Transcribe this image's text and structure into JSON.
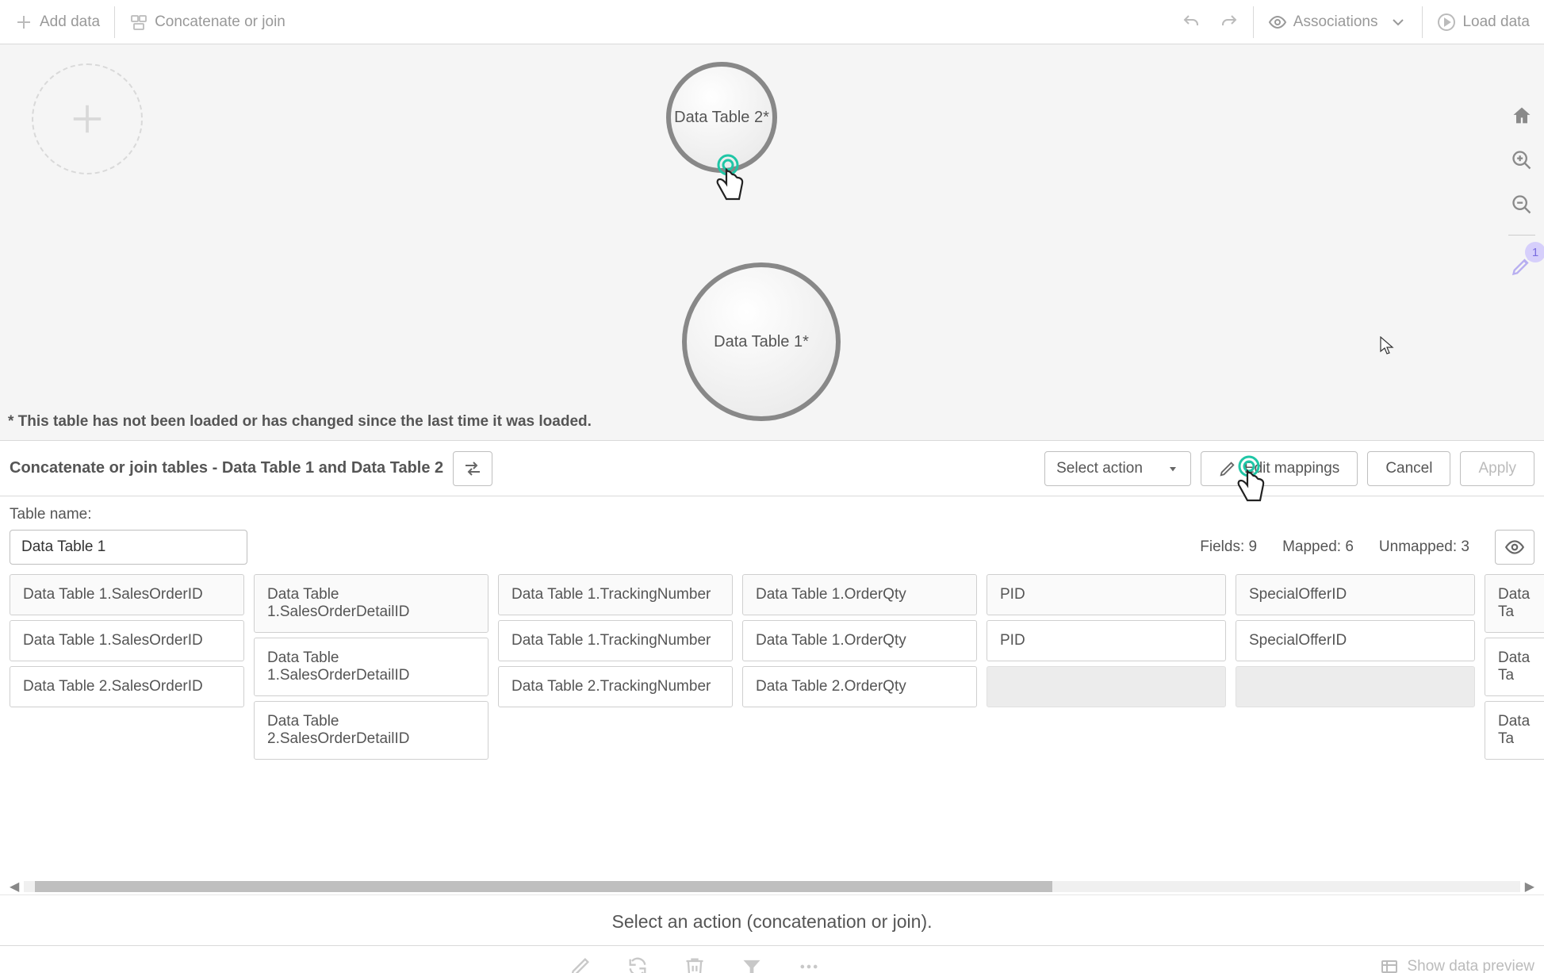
{
  "topbar": {
    "add_data": "Add data",
    "concat_join": "Concatenate or join",
    "associations": "Associations",
    "load_data": "Load data"
  },
  "canvas": {
    "bubble_small_label": "Data Table 2*",
    "bubble_large_label": "Data Table 1*",
    "footnote": "* This table has not been loaded or has changed since the last time it was loaded.",
    "recommendation_count": "1"
  },
  "actionbar": {
    "title": "Concatenate or join tables - Data Table 1 and Data Table 2",
    "select_action": "Select action",
    "edit_mappings": "Edit mappings",
    "cancel": "Cancel",
    "apply": "Apply"
  },
  "meta": {
    "table_name_label": "Table name:",
    "table_name_value": "Data Table 1",
    "fields_label": "Fields:",
    "fields_value": "9",
    "mapped_label": "Mapped:",
    "mapped_value": "6",
    "unmapped_label": "Unmapped:",
    "unmapped_value": "3"
  },
  "columns": [
    {
      "header": "Data Table 1.SalesOrderID",
      "rows": [
        "Data Table 1.SalesOrderID",
        "Data Table 2.SalesOrderID"
      ]
    },
    {
      "header": "Data Table 1.SalesOrderDetailID",
      "rows": [
        "Data Table 1.SalesOrderDetailID",
        "Data Table 2.SalesOrderDetailID"
      ]
    },
    {
      "header": "Data Table 1.TrackingNumber",
      "rows": [
        "Data Table 1.TrackingNumber",
        "Data Table 2.TrackingNumber"
      ]
    },
    {
      "header": "Data Table 1.OrderQty",
      "rows": [
        "Data Table 1.OrderQty",
        "Data Table 2.OrderQty"
      ]
    },
    {
      "header": "PID",
      "rows": [
        "PID",
        ""
      ]
    },
    {
      "header": "SpecialOfferID",
      "rows": [
        "SpecialOfferID",
        ""
      ]
    },
    {
      "header": "Data Ta",
      "rows": [
        "Data Ta",
        "Data Ta"
      ]
    }
  ],
  "instruction": "Select an action (concatenation or join).",
  "bottombar": {
    "show_preview": "Show data preview"
  },
  "colors": {
    "bubble_border": "#888888",
    "accent_teal": "#1fc6a6",
    "badge_bg": "#d6cffb",
    "badge_fg": "#7a6de0"
  }
}
